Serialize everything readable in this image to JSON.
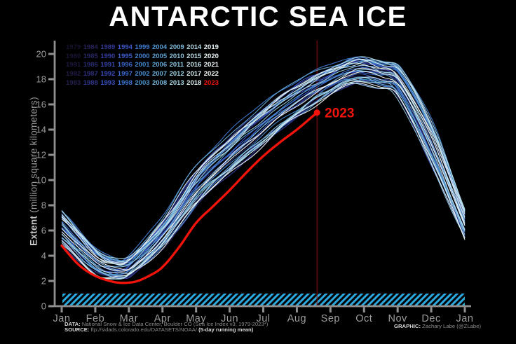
{
  "title": "ANTARCTIC SEA ICE",
  "colors": {
    "background": "#000000",
    "title": "#ffffff",
    "axis": "#8f8f8f",
    "tick_label": "#9d9d9d",
    "axis_label": "#9a9a9a",
    "red_2023": "#f2140a",
    "red_vline": "#8e1310",
    "hatch": "#2ba8de",
    "year_gradient": [
      "#18122d",
      "#262355",
      "#31368e",
      "#3b51c6",
      "#3b74d3",
      "#4a92cf",
      "#6fb3da",
      "#a3d5e5",
      "#ddeff3",
      "#f6fbfb"
    ]
  },
  "legend": {
    "years": [
      "1979",
      "1980",
      "1981",
      "1982",
      "1983",
      "1984",
      "1985",
      "1986",
      "1987",
      "1988",
      "1989",
      "1990",
      "1991",
      "1992",
      "1993",
      "1994",
      "1995",
      "1996",
      "1997",
      "1998",
      "1999",
      "2000",
      "2001",
      "2002",
      "2003",
      "2004",
      "2005",
      "2006",
      "2007",
      "2008",
      "2009",
      "2010",
      "2011",
      "2012",
      "2013",
      "2014",
      "2015",
      "2016",
      "2017",
      "2018",
      "2019",
      "2020",
      "2021",
      "2022",
      "2023"
    ],
    "highlight_year": "2023"
  },
  "axes": {
    "y_label_bold": "Extent",
    "y_label_rest": " (million square kilometers)",
    "y_ticks": [
      0,
      2,
      4,
      6,
      8,
      10,
      12,
      14,
      16,
      18,
      20
    ],
    "x_ticks": [
      "Jan",
      "Feb",
      "Mar",
      "Apr",
      "May",
      "Jun",
      "Jul",
      "Aug",
      "Sep",
      "Oct",
      "Nov",
      "Dec",
      "Jan"
    ],
    "ylim": [
      0,
      21
    ]
  },
  "footer": {
    "data_bold": "DATA:",
    "data_text": " National Snow & Ice Data Center, Boulder CO (Sea Ice Index v3; 1979-2023*)",
    "source_bold": "SOURCE:",
    "source_text": " ftp://sidads.colorado.edu/DATASETS/NOAA/ ",
    "source_note": "(5-day running mean)",
    "graphic_bold": "GRAPHIC:",
    "graphic_text": " Zachary Labe (@ZLabe)"
  },
  "chart_data": {
    "type": "line",
    "title": "ANTARCTIC SEA ICE",
    "ylabel": "Extent (million square kilometers)",
    "xlabel": "",
    "ylim": [
      0,
      21
    ],
    "grid": false,
    "legend_position": "upper-left",
    "x_axis_months": [
      "Jan",
      "Feb",
      "Mar",
      "Apr",
      "May",
      "Jun",
      "Jul",
      "Aug",
      "Sep",
      "Oct",
      "Nov",
      "Dec",
      "Jan"
    ],
    "y_ticks": [
      0,
      2,
      4,
      6,
      8,
      10,
      12,
      14,
      16,
      18,
      20
    ],
    "background_years": {
      "first": 1979,
      "last": 2022,
      "count": 44,
      "anchor_months": [
        0,
        1,
        1.7,
        2,
        3,
        4,
        5,
        6,
        7,
        8,
        8.8,
        9.5,
        10,
        11,
        12
      ],
      "median_extent": [
        6.3,
        3.6,
        2.95,
        3.1,
        5.7,
        9.4,
        12.0,
        14.3,
        16.3,
        17.9,
        18.7,
        18.4,
        17.9,
        13.0,
        6.6
      ],
      "envelope_halfwidth": [
        1.4,
        1.0,
        0.85,
        0.9,
        1.1,
        1.5,
        1.6,
        1.7,
        1.5,
        1.2,
        1.1,
        1.15,
        1.2,
        1.6,
        1.3
      ]
    },
    "series_2023": {
      "label": "2023",
      "anchor_months": [
        0,
        0.5,
        1,
        1.5,
        1.8,
        2.2,
        2.6,
        3,
        3.5,
        4,
        4.5,
        5,
        5.5,
        6,
        6.5,
        7,
        7.6
      ],
      "extent": [
        4.8,
        3.3,
        2.4,
        1.95,
        1.85,
        1.95,
        2.4,
        3.1,
        4.7,
        6.6,
        7.9,
        9.2,
        10.6,
        11.9,
        13.0,
        14.0,
        15.35
      ],
      "last_point": {
        "month": 7.6,
        "extent": 15.35
      },
      "vline_month": 7.6
    },
    "hatched_band": {
      "ymin": 0,
      "ymax": 1
    }
  }
}
